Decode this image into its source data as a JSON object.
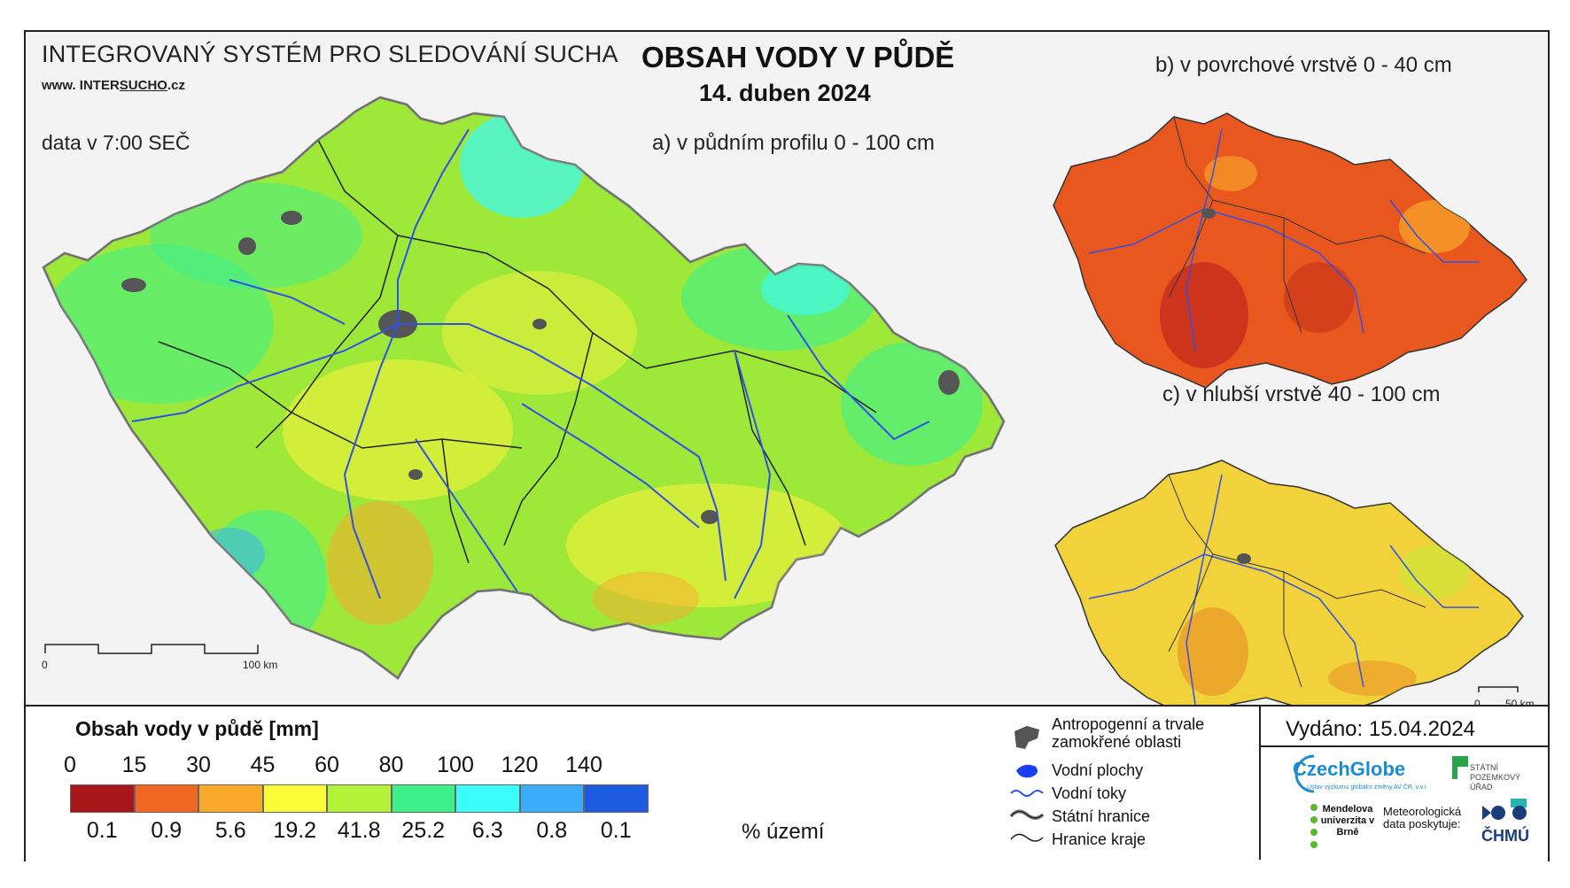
{
  "header": {
    "system_title": "INTEGROVANÝ SYSTÉM PRO SLEDOVÁNÍ SUCHA",
    "website_prefix": "www. INTER",
    "website_sucho": "SUCHO",
    "website_suffix": ".cz",
    "data_time": "data v 7:00 SEČ",
    "main_title": "OBSAH VODY V PŮDĚ",
    "date": "14. duben 2024"
  },
  "maps": {
    "a_label": "a) v půdním profilu 0 - 100 cm",
    "b_label": "b) v povrchové vrstvě 0 - 40 cm",
    "c_label": "c) v hlubší vrstvě 40 - 100 cm",
    "scale_main": {
      "start": "0",
      "end": "100 km"
    },
    "scale_small": {
      "start": "0",
      "end": "50 km"
    },
    "colors": {
      "a_base": "#9ee83a",
      "a_wet": "#3cf08c",
      "a_dry": "#f5f03a",
      "b_base": "#e8581e",
      "b_dry": "#c0261a",
      "c_base": "#f2d23a",
      "c_dry": "#e88a24",
      "rivers": "#3050e8",
      "borders": "#222222",
      "urban": "#555555"
    }
  },
  "legend": {
    "title": "Obsah vody v půdě  [mm]",
    "ticks": [
      "0",
      "15",
      "30",
      "45",
      "60",
      "80",
      "100",
      "120",
      "140"
    ],
    "colors": [
      "#a8171a",
      "#ef6720",
      "#f9aa2a",
      "#fbfb3a",
      "#b4f23a",
      "#3df08a",
      "#3cfbfb",
      "#3cadf9",
      "#1d5ce0"
    ],
    "percent_area": [
      "0.1",
      "0.9",
      "5.6",
      "19.2",
      "41.8",
      "25.2",
      "6.3",
      "0.8",
      "0.1"
    ],
    "percent_unit": "% území"
  },
  "symbols": {
    "urban": "Antropogenní a trvale zamokřené oblasti",
    "urban_line2": "zamokřené oblasti",
    "urban_line1": "Antropogenní a trvale",
    "water_bodies": "Vodní plochy",
    "rivers": "Vodní toky",
    "state_border": "Státní hranice",
    "region_border": "Hranice kraje"
  },
  "footer": {
    "issued": "Vydáno: 15.04.2024",
    "logo_czechglobe": "CzechGlobe",
    "logo_czechglobe_sub": "Ústav výzkumu globální změny AV ČR, v.v.i.",
    "logo_spu": "STÁTNÍ POZEMKOVÝ ÚŘAD",
    "logo_mendel": "Mendelova univerzita v Brně",
    "logo_met": "Meteorologická data poskytuje:",
    "logo_chmu": "ČHMÚ"
  }
}
